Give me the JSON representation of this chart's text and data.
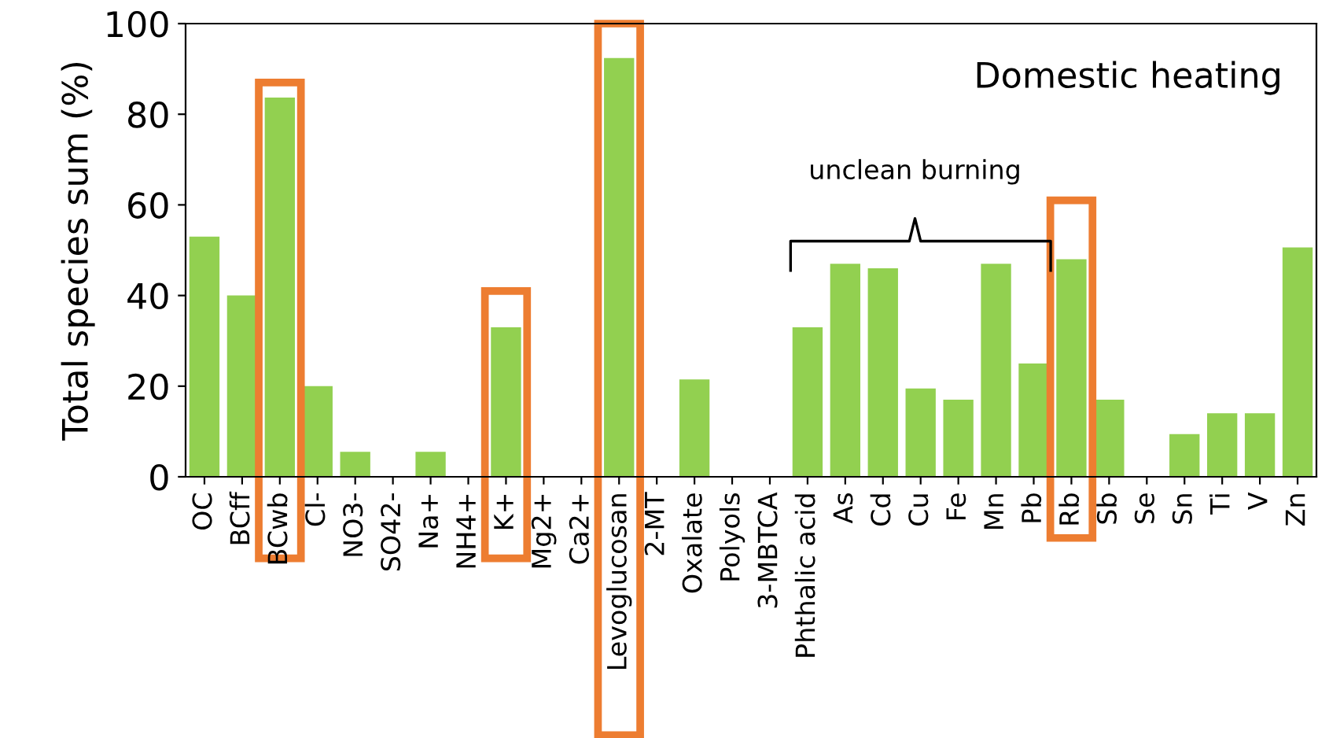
{
  "chart_data": {
    "type": "bar",
    "ylabel": "Total species sum (%)",
    "categories": [
      "OC",
      "BCff",
      "BCwb",
      "Cl-",
      "NO3-",
      "SO42-",
      "Na+",
      "NH4+",
      "K+",
      "Mg2+",
      "Ca2+",
      "Levoglucosan",
      "2-MT",
      "Oxalate",
      "Polyols",
      "3-MBTCA",
      "Phthalic acid",
      "As",
      "Cd",
      "Cu",
      "Fe",
      "Mn",
      "Pb",
      "Rb",
      "Sb",
      "Se",
      "Sn",
      "Ti",
      "V",
      "Zn"
    ],
    "values": [
      53,
      40,
      83.7,
      20,
      5.5,
      0,
      5.5,
      0,
      33,
      0,
      0,
      92.4,
      0,
      21.5,
      0,
      0,
      33,
      47,
      46,
      19.5,
      17,
      47,
      25,
      48,
      17,
      0,
      9.4,
      14,
      14,
      50.6
    ],
    "color": "#92d050",
    "ylim": [
      0,
      100
    ],
    "yticks": [
      0,
      20,
      40,
      60,
      80,
      100
    ],
    "grid": false,
    "annotations": [
      "Domestic heating",
      "unclean burning"
    ]
  }
}
